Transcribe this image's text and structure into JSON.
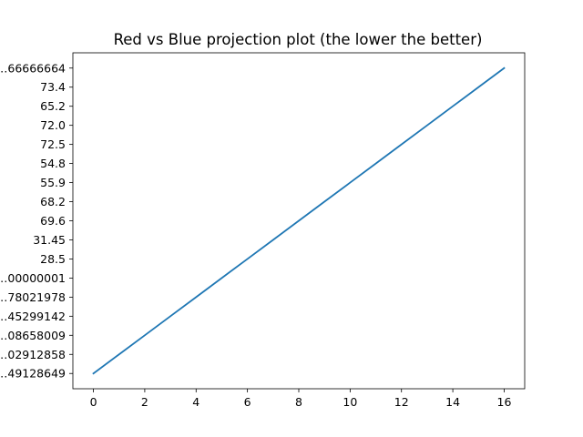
{
  "chart_data": {
    "type": "line",
    "title": "Red vs Blue projection plot (the lower the better)",
    "xlabel": "",
    "ylabel": "",
    "x_ticks": [
      "0",
      "2",
      "4",
      "6",
      "8",
      "10",
      "12",
      "14",
      "16"
    ],
    "y_categories": [
      "…49128649",
      "…02912858",
      "…08658009",
      "…45299142",
      "…78021978",
      "…00000001",
      "28.5",
      "31.45",
      "69.6",
      "68.2",
      "55.9",
      "54.8",
      "72.5",
      "72.0",
      "65.2",
      "73.4",
      "…66666664"
    ],
    "xlim": [
      -0.8,
      16.8
    ],
    "grid": false,
    "legend": "none",
    "series": [
      {
        "x": [
          0,
          1,
          2,
          3,
          4,
          5,
          6,
          7,
          8,
          9,
          10,
          11,
          12,
          13,
          14,
          15,
          16
        ],
        "y": [
          "…49128649",
          "…02912858",
          "…08658009",
          "…45299142",
          "…78021978",
          "…00000001",
          "28.5",
          "31.45",
          "69.6",
          "68.2",
          "55.9",
          "54.8",
          "72.5",
          "72.0",
          "65.2",
          "73.4",
          "…66666664"
        ],
        "color": "#1f77b4"
      }
    ]
  }
}
